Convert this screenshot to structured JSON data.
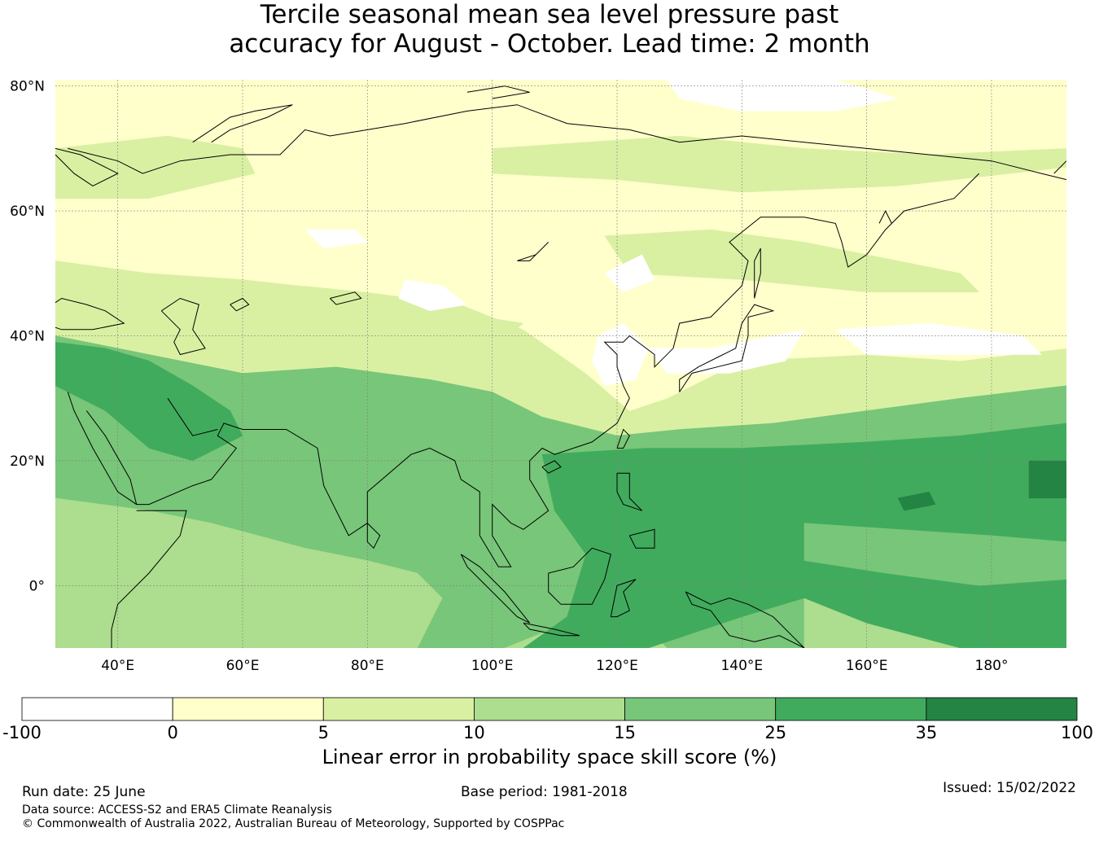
{
  "title": {
    "line1": "Tercile seasonal mean sea level pressure past",
    "line2": "accuracy for August - October. Lead time: 2 month"
  },
  "map": {
    "projection": "PlateCarree",
    "lon_range": [
      30,
      192
    ],
    "lat_range": [
      -10,
      81
    ],
    "lat_ticks": [
      {
        "value": 80,
        "label": "80°N"
      },
      {
        "value": 60,
        "label": "60°N"
      },
      {
        "value": 40,
        "label": "40°N"
      },
      {
        "value": 20,
        "label": "20°N"
      },
      {
        "value": 0,
        "label": "0°"
      }
    ],
    "lon_ticks": [
      {
        "value": 40,
        "label": "40°E"
      },
      {
        "value": 60,
        "label": "60°E"
      },
      {
        "value": 80,
        "label": "80°E"
      },
      {
        "value": 100,
        "label": "100°E"
      },
      {
        "value": 120,
        "label": "120°E"
      },
      {
        "value": 140,
        "label": "140°E"
      },
      {
        "value": 160,
        "label": "160°E"
      },
      {
        "value": 180,
        "label": "180°"
      }
    ],
    "gridlines": true,
    "coastlines": true
  },
  "colorbar": {
    "boundaries": [
      -100,
      0,
      5,
      10,
      15,
      25,
      35,
      100
    ],
    "labels": [
      "-100",
      "0",
      "5",
      "10",
      "15",
      "25",
      "35",
      "100"
    ],
    "colors": [
      "#ffffff",
      "#ffffcc",
      "#d9f0a3",
      "#addd8e",
      "#78c679",
      "#41ab5d",
      "#238443"
    ],
    "label": "Linear error in probability space skill score (%)"
  },
  "footer": {
    "run_date": "Run date: 25 June",
    "base_period": "Base period: 1981-2018",
    "issued": "Issued: 15/02/2022",
    "data_source": "Data source: ACCESS-S2 and ERA5 Climate Reanalysis",
    "copyright": "© Commonwealth of Australia 2022, Australian Bureau of Meteorology, Supported by COSPPac"
  },
  "colors": {
    "coastline": "#000000",
    "gridline": "#808080"
  }
}
